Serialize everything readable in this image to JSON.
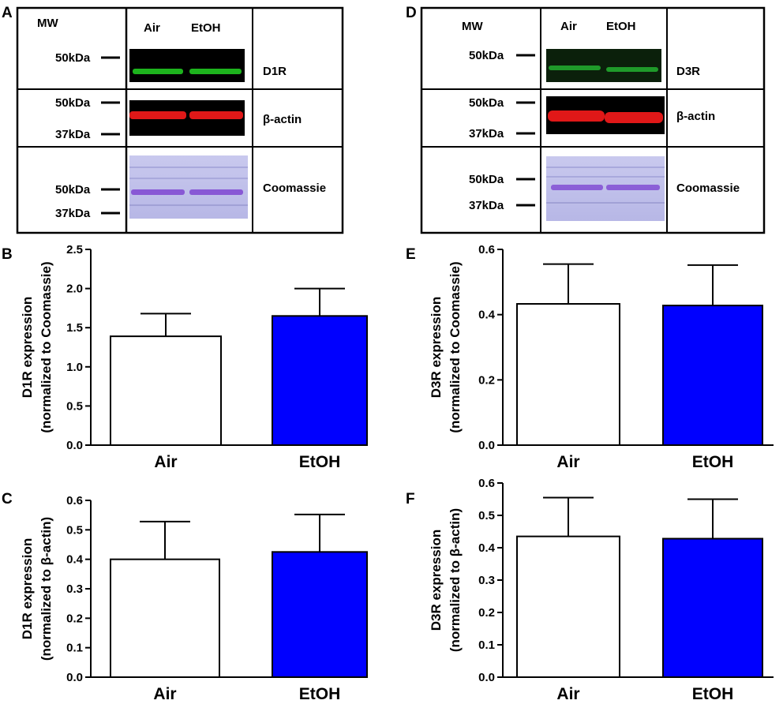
{
  "panels": {
    "A": {
      "letter": "A"
    },
    "B": {
      "letter": "B"
    },
    "C": {
      "letter": "C"
    },
    "D": {
      "letter": "D"
    },
    "E": {
      "letter": "E"
    },
    "F": {
      "letter": "F"
    }
  },
  "blots": [
    {
      "key": "A",
      "mw_header": "MW",
      "lanes": [
        "Air",
        "EtOH"
      ],
      "rows": [
        {
          "label": "D1R",
          "markers": [
            "50kDa"
          ],
          "color": "#1db31d"
        },
        {
          "label": "β-actin",
          "markers": [
            "50kDa",
            "37kDa"
          ],
          "color": "#e01818"
        },
        {
          "label": "Coomassie",
          "markers": [
            "50kDa",
            "37kDa"
          ],
          "color": "#7a3fd0"
        }
      ]
    },
    {
      "key": "D",
      "mw_header": "MW",
      "lanes": [
        "Air",
        "EtOH"
      ],
      "rows": [
        {
          "label": "D3R",
          "markers": [
            "50kDa"
          ],
          "color": "#1db31d"
        },
        {
          "label": "β-actin",
          "markers": [
            "50kDa",
            "37kDa"
          ],
          "color": "#e01818"
        },
        {
          "label": "Coomassie",
          "markers": [
            "50kDa",
            "37kDa"
          ],
          "color": "#7a3fd0"
        }
      ]
    }
  ],
  "chart_data": [
    {
      "key": "B",
      "type": "bar",
      "categories": [
        "Air",
        "EtOH"
      ],
      "values": [
        1.39,
        1.65
      ],
      "errors": [
        0.29,
        0.35
      ],
      "ylabel": [
        "D1R expression",
        "(normalized to Coomassie)"
      ],
      "ylim": [
        0,
        2.5
      ],
      "ticks": [
        "0.0",
        "0.5",
        "1.0",
        "1.5",
        "2.0",
        "2.5"
      ],
      "bar_colors": [
        "#ffffff",
        "#0000ff"
      ]
    },
    {
      "key": "C",
      "type": "bar",
      "categories": [
        "Air",
        "EtOH"
      ],
      "values": [
        0.4,
        0.425
      ],
      "errors": [
        0.128,
        0.127
      ],
      "ylabel": [
        "D1R expression",
        "(normalized to β-actin)"
      ],
      "ylim": [
        0,
        0.6
      ],
      "ticks": [
        "0.0",
        "0.1",
        "0.2",
        "0.3",
        "0.4",
        "0.5",
        "0.6"
      ],
      "bar_colors": [
        "#ffffff",
        "#0000ff"
      ]
    },
    {
      "key": "E",
      "type": "bar",
      "categories": [
        "Air",
        "EtOH"
      ],
      "values": [
        0.433,
        0.428
      ],
      "errors": [
        0.122,
        0.124
      ],
      "ylabel": [
        "D3R expression",
        "(normalized to Coomassie)"
      ],
      "ylim": [
        0,
        0.6
      ],
      "ticks": [
        "0.0",
        "0.2",
        "0.4",
        "0.6"
      ],
      "bar_colors": [
        "#ffffff",
        "#0000ff"
      ]
    },
    {
      "key": "F",
      "type": "bar",
      "categories": [
        "Air",
        "EtOH"
      ],
      "values": [
        0.435,
        0.428
      ],
      "errors": [
        0.12,
        0.122
      ],
      "ylabel": [
        "D3R expression",
        "(normalized to β-actin)"
      ],
      "ylim": [
        0,
        0.6
      ],
      "ticks": [
        "0.0",
        "0.1",
        "0.2",
        "0.3",
        "0.4",
        "0.5",
        "0.6"
      ],
      "bar_colors": [
        "#ffffff",
        "#0000ff"
      ]
    }
  ]
}
